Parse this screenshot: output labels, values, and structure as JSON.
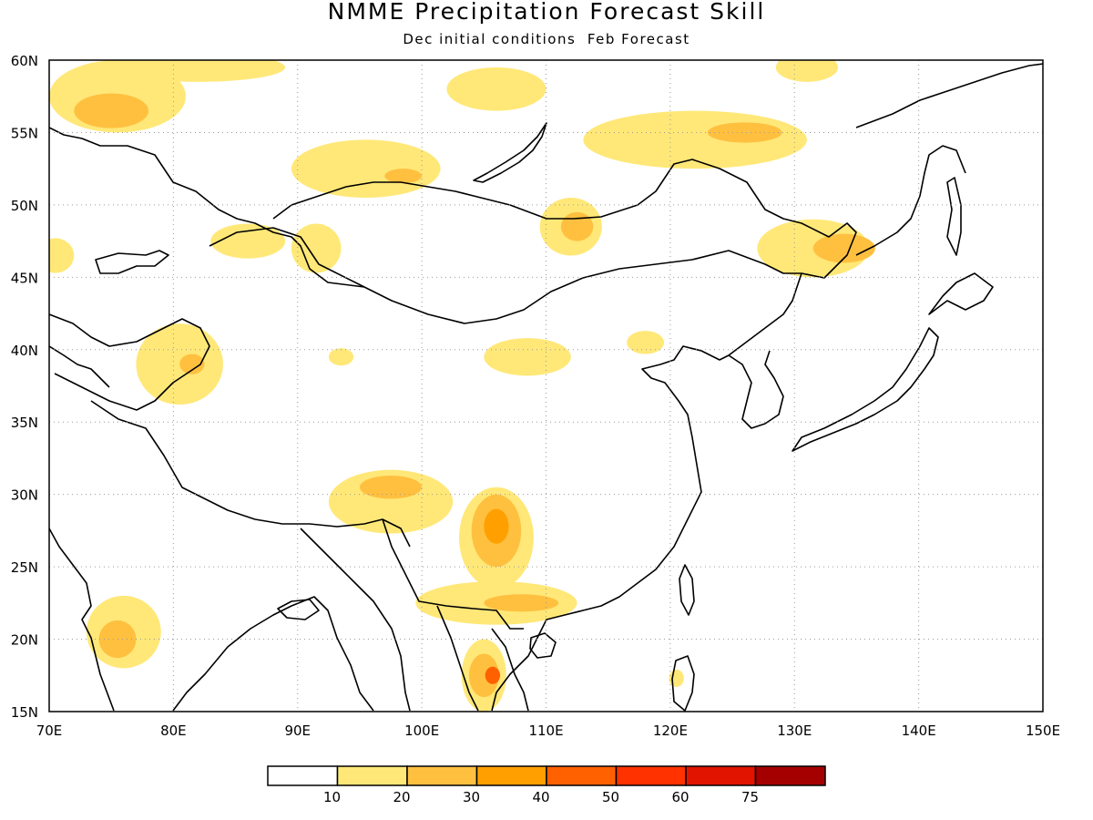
{
  "title": "NMME Precipitation Forecast Skill",
  "subtitle": "Dec initial conditions  Feb Forecast",
  "map": {
    "lon_range": [
      70,
      150
    ],
    "lat_range": [
      15,
      60
    ],
    "lon_ticks": [
      "70E",
      "80E",
      "90E",
      "100E",
      "110E",
      "120E",
      "130E",
      "140E",
      "150E"
    ],
    "lat_ticks": [
      "60N",
      "55N",
      "50N",
      "45N",
      "40N",
      "35N",
      "30N",
      "25N",
      "20N",
      "15N"
    ],
    "grid": "dotted",
    "skill_regions": [
      {
        "level": 10,
        "lon": 75.5,
        "lat": 57.5,
        "rlon": 5.5,
        "rlat": 2.5
      },
      {
        "level": 20,
        "lon": 75.0,
        "lat": 56.5,
        "rlon": 3.0,
        "rlat": 1.2
      },
      {
        "level": 10,
        "lon": 82.0,
        "lat": 59.5,
        "rlon": 7.0,
        "rlat": 1.0
      },
      {
        "level": 10,
        "lon": 106.0,
        "lat": 58.0,
        "rlon": 4.0,
        "rlat": 1.5
      },
      {
        "level": 10,
        "lon": 95.5,
        "lat": 52.5,
        "rlon": 6.0,
        "rlat": 2.0
      },
      {
        "level": 20,
        "lon": 98.5,
        "lat": 52.0,
        "rlon": 1.5,
        "rlat": 0.5
      },
      {
        "level": 10,
        "lon": 91.5,
        "lat": 47.0,
        "rlon": 2.0,
        "rlat": 1.7
      },
      {
        "level": 10,
        "lon": 112.0,
        "lat": 48.5,
        "rlon": 2.5,
        "rlat": 2.0
      },
      {
        "level": 20,
        "lon": 112.5,
        "lat": 48.5,
        "rlon": 1.3,
        "rlat": 1.0
      },
      {
        "level": 10,
        "lon": 86.0,
        "lat": 47.5,
        "rlon": 3.0,
        "rlat": 1.2
      },
      {
        "level": 10,
        "lon": 70.5,
        "lat": 46.5,
        "rlon": 1.5,
        "rlat": 1.2
      },
      {
        "level": 10,
        "lon": 122.0,
        "lat": 54.5,
        "rlon": 9.0,
        "rlat": 2.0
      },
      {
        "level": 20,
        "lon": 126.0,
        "lat": 55.0,
        "rlon": 3.0,
        "rlat": 0.7
      },
      {
        "level": 10,
        "lon": 131.0,
        "lat": 59.5,
        "rlon": 2.5,
        "rlat": 1.0
      },
      {
        "level": 10,
        "lon": 131.5,
        "lat": 47.0,
        "rlon": 4.5,
        "rlat": 2.0
      },
      {
        "level": 20,
        "lon": 134.0,
        "lat": 47.0,
        "rlon": 2.5,
        "rlat": 1.0
      },
      {
        "level": 10,
        "lon": 80.5,
        "lat": 39.0,
        "rlon": 3.5,
        "rlat": 2.8
      },
      {
        "level": 20,
        "lon": 81.5,
        "lat": 39.0,
        "rlon": 1.0,
        "rlat": 0.7
      },
      {
        "level": 10,
        "lon": 108.5,
        "lat": 39.5,
        "rlon": 3.5,
        "rlat": 1.3
      },
      {
        "level": 10,
        "lon": 97.5,
        "lat": 29.5,
        "rlon": 5.0,
        "rlat": 2.2
      },
      {
        "level": 20,
        "lon": 97.5,
        "lat": 30.5,
        "rlon": 2.5,
        "rlat": 0.8
      },
      {
        "level": 10,
        "lon": 106.0,
        "lat": 27.0,
        "rlon": 3.0,
        "rlat": 3.5
      },
      {
        "level": 20,
        "lon": 106.0,
        "lat": 27.5,
        "rlon": 2.0,
        "rlat": 2.5
      },
      {
        "level": 30,
        "lon": 106.0,
        "lat": 27.8,
        "rlon": 1.0,
        "rlat": 1.2
      },
      {
        "level": 10,
        "lon": 106.0,
        "lat": 22.5,
        "rlon": 6.5,
        "rlat": 1.5
      },
      {
        "level": 20,
        "lon": 108.0,
        "lat": 22.5,
        "rlon": 3.0,
        "rlat": 0.6
      },
      {
        "level": 10,
        "lon": 105.0,
        "lat": 17.5,
        "rlon": 1.8,
        "rlat": 2.5
      },
      {
        "level": 20,
        "lon": 105.0,
        "lat": 17.5,
        "rlon": 1.2,
        "rlat": 1.5
      },
      {
        "level": 40,
        "lon": 105.7,
        "lat": 17.5,
        "rlon": 0.6,
        "rlat": 0.6
      },
      {
        "level": 10,
        "lon": 76.0,
        "lat": 20.5,
        "rlon": 3.0,
        "rlat": 2.5
      },
      {
        "level": 20,
        "lon": 75.5,
        "lat": 20.0,
        "rlon": 1.5,
        "rlat": 1.3
      },
      {
        "level": 10,
        "lon": 120.5,
        "lat": 17.3,
        "rlon": 0.6,
        "rlat": 0.6
      },
      {
        "level": 10,
        "lon": 118.0,
        "lat": 40.5,
        "rlon": 1.5,
        "rlat": 0.8
      },
      {
        "level": 10,
        "lon": 93.5,
        "lat": 39.5,
        "rlon": 1.0,
        "rlat": 0.6
      }
    ]
  },
  "colorbar": {
    "labels": [
      "10",
      "20",
      "30",
      "40",
      "50",
      "60",
      "75"
    ],
    "colors": [
      "#ffffff",
      "#ffe878",
      "#ffc040",
      "#ffa000",
      "#ff6000",
      "#ff3200",
      "#e11400",
      "#a50000"
    ]
  }
}
